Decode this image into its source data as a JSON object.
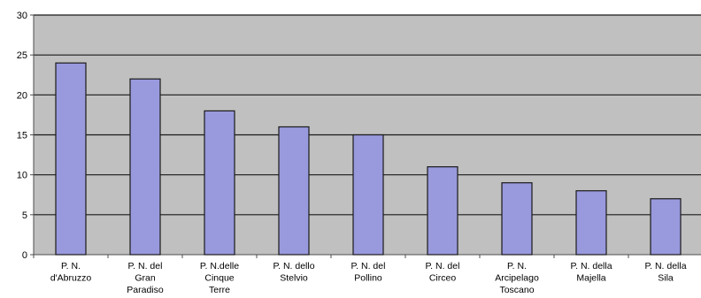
{
  "chart_data": {
    "type": "bar",
    "categories": [
      [
        "P. N.",
        "d'Abruzzo"
      ],
      [
        "P. N. del",
        "Gran",
        "Paradiso"
      ],
      [
        "P. N.delle",
        "Cinque",
        "Terre"
      ],
      [
        "P. N. dello",
        "Stelvio"
      ],
      [
        "P. N. del",
        "Pollino"
      ],
      [
        "P. N. del",
        "Circeo"
      ],
      [
        "P. N.",
        "Arcipelago",
        "Toscano"
      ],
      [
        "P. N. della",
        "Majella"
      ],
      [
        "P. N. della",
        "Sila"
      ]
    ],
    "values": [
      24,
      22,
      18,
      16,
      15,
      11,
      9,
      8,
      7
    ],
    "ylim": [
      0,
      30
    ],
    "yticks": [
      0,
      5,
      10,
      15,
      20,
      25,
      30
    ],
    "grid": true,
    "legend": "none",
    "colors": {
      "plot_background": "#c0c0c0",
      "bar_fill": "#9999dd",
      "bar_stroke": "#1a1a1a",
      "gridline": "#1a1a1a",
      "axis": "#4d4d4d"
    }
  }
}
